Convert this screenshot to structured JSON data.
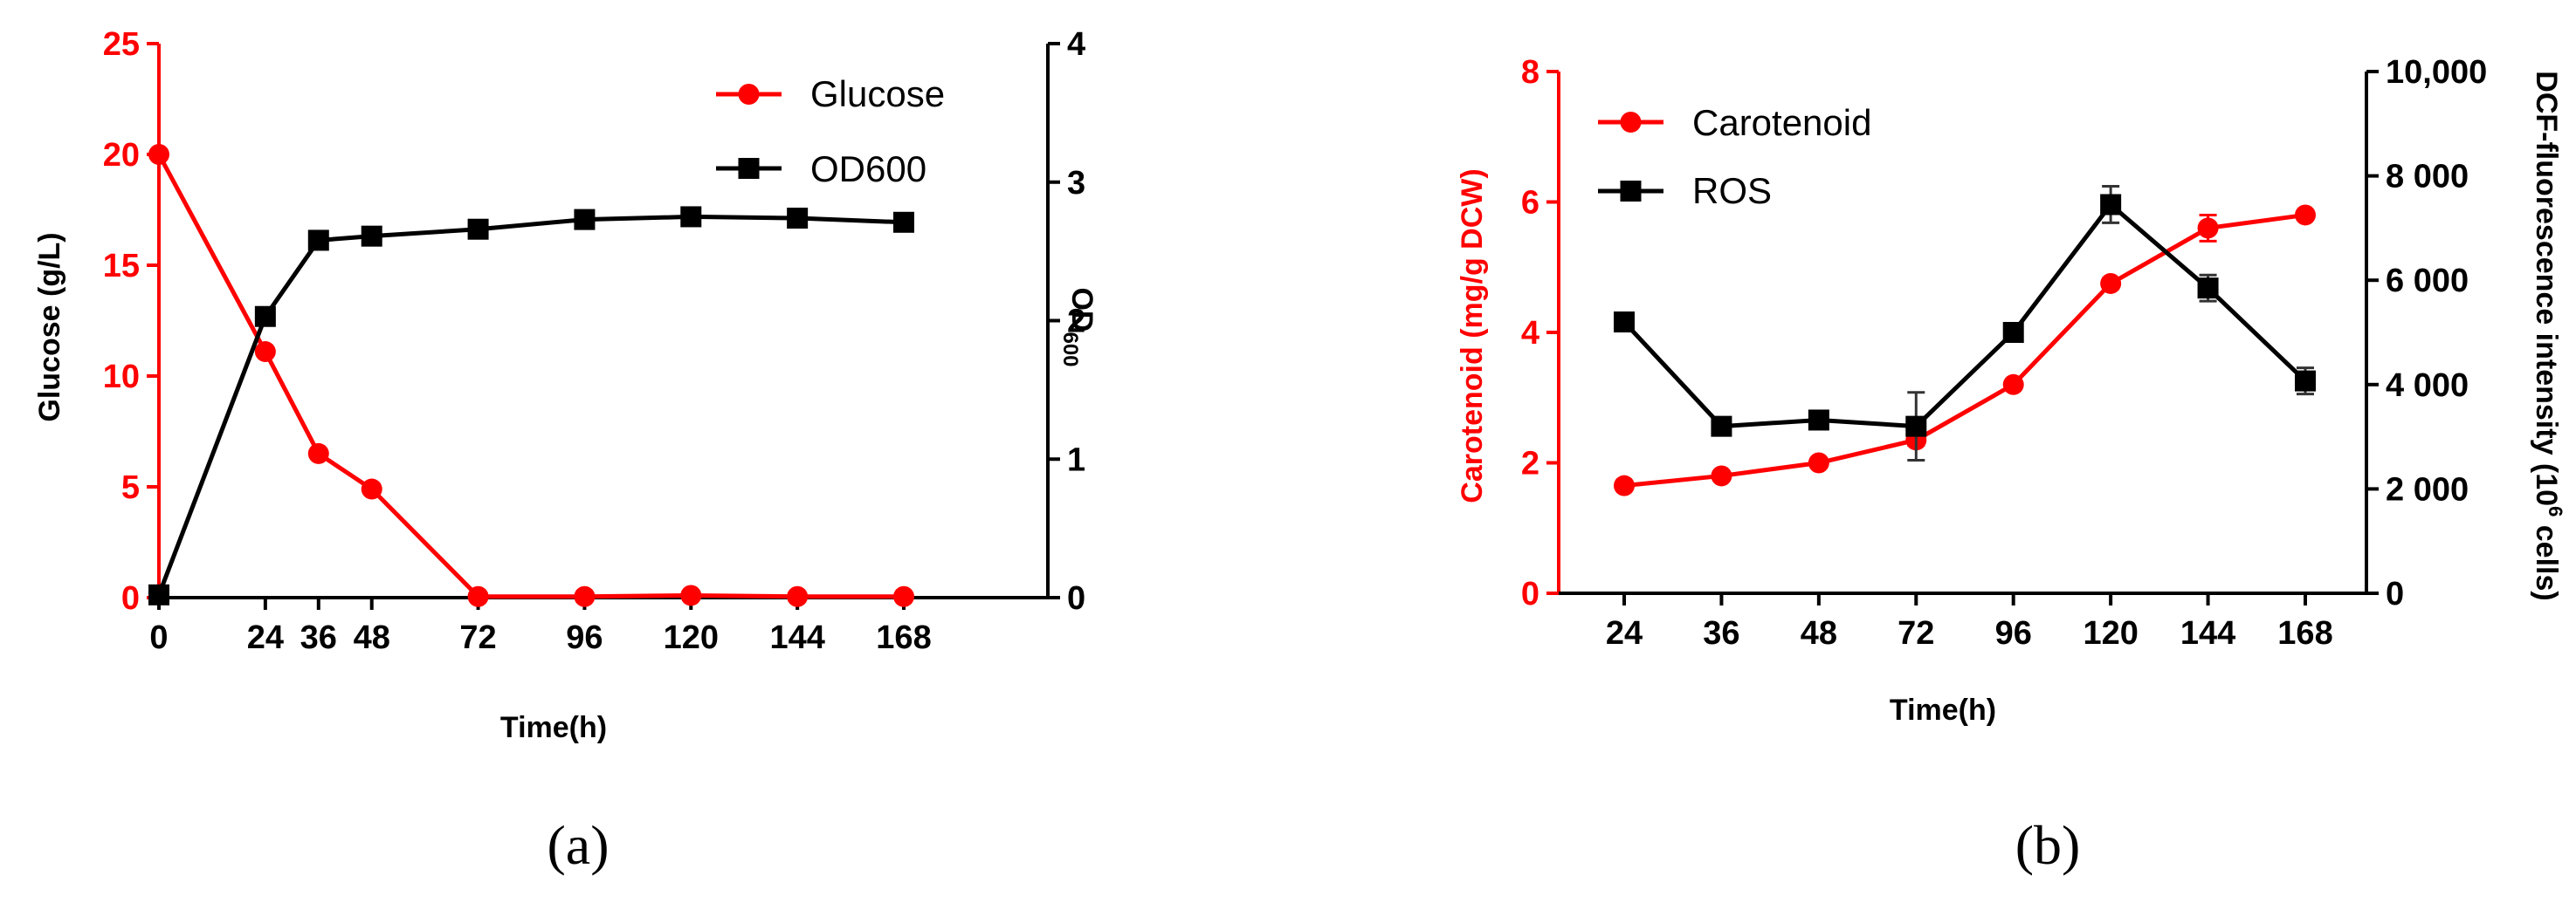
{
  "figure": {
    "label_a": "(a)",
    "label_b": "(b)"
  },
  "colors": {
    "red": "#ff0000",
    "black": "#000000"
  },
  "chart_data": [
    {
      "type": "line",
      "panel": "a",
      "xlabel": "Time(h)",
      "ylabel_left": "Glucose (g/L)",
      "ylabel_right_main": "OD",
      "ylabel_right_sub": "600",
      "x": [
        0,
        24,
        36,
        48,
        72,
        96,
        120,
        144,
        168
      ],
      "x_ticks": [
        "0",
        "24",
        "36",
        "48",
        "72",
        "96",
        "120",
        "144",
        "168"
      ],
      "ylim_left": [
        0,
        25
      ],
      "y_ticks_left": [
        "0",
        "5",
        "10",
        "15",
        "20",
        "25"
      ],
      "ylim_right": [
        0,
        4
      ],
      "y_ticks_right": [
        "0",
        "1",
        "2",
        "3",
        "4"
      ],
      "legend_position": "top-right",
      "series": [
        {
          "name": "Glucose",
          "axis": "left",
          "color": "#ff0000",
          "marker": "circle",
          "values": [
            20,
            11.1,
            6.5,
            4.9,
            0.05,
            0.05,
            0.1,
            0.05,
            0.05
          ]
        },
        {
          "name": "OD600",
          "axis": "right",
          "color": "#000000",
          "marker": "square",
          "values": [
            0.02,
            2.03,
            2.58,
            2.61,
            2.66,
            2.73,
            2.75,
            2.74,
            2.71
          ]
        }
      ]
    },
    {
      "type": "line",
      "panel": "b",
      "xlabel": "Time(h)",
      "ylabel_left": "Carotenoid (mg/g DCW)",
      "ylabel_right": "DCF-fluorescence intensity (10",
      "ylabel_right_sup": "6",
      "ylabel_right_end": " cells)",
      "x": [
        24,
        36,
        48,
        72,
        96,
        120,
        144,
        168
      ],
      "x_ticks": [
        "24",
        "36",
        "48",
        "72",
        "96",
        "120",
        "144",
        "168"
      ],
      "ylim_left": [
        0,
        8
      ],
      "y_ticks_left": [
        "0",
        "2",
        "4",
        "6",
        "8"
      ],
      "ylim_right": [
        0,
        10000
      ],
      "y_ticks_right": [
        "0",
        "2 000",
        "4 000",
        "6 000",
        "8 000",
        "10,000"
      ],
      "legend_position": "top-left",
      "series": [
        {
          "name": "Carotenoid",
          "axis": "left",
          "color": "#ff0000",
          "marker": "circle",
          "values": [
            1.65,
            1.8,
            2.0,
            2.35,
            3.2,
            4.75,
            5.6,
            5.8
          ],
          "errors": [
            0.04,
            0.04,
            0.05,
            0.08,
            0.06,
            0.08,
            0.2,
            0.05
          ]
        },
        {
          "name": "ROS",
          "axis": "right",
          "color": "#000000",
          "marker": "square",
          "values": [
            5200,
            3200,
            3320,
            3200,
            5000,
            7450,
            5850,
            4070
          ],
          "errors": [
            100,
            100,
            100,
            650,
            100,
            350,
            250,
            250
          ]
        }
      ]
    }
  ]
}
